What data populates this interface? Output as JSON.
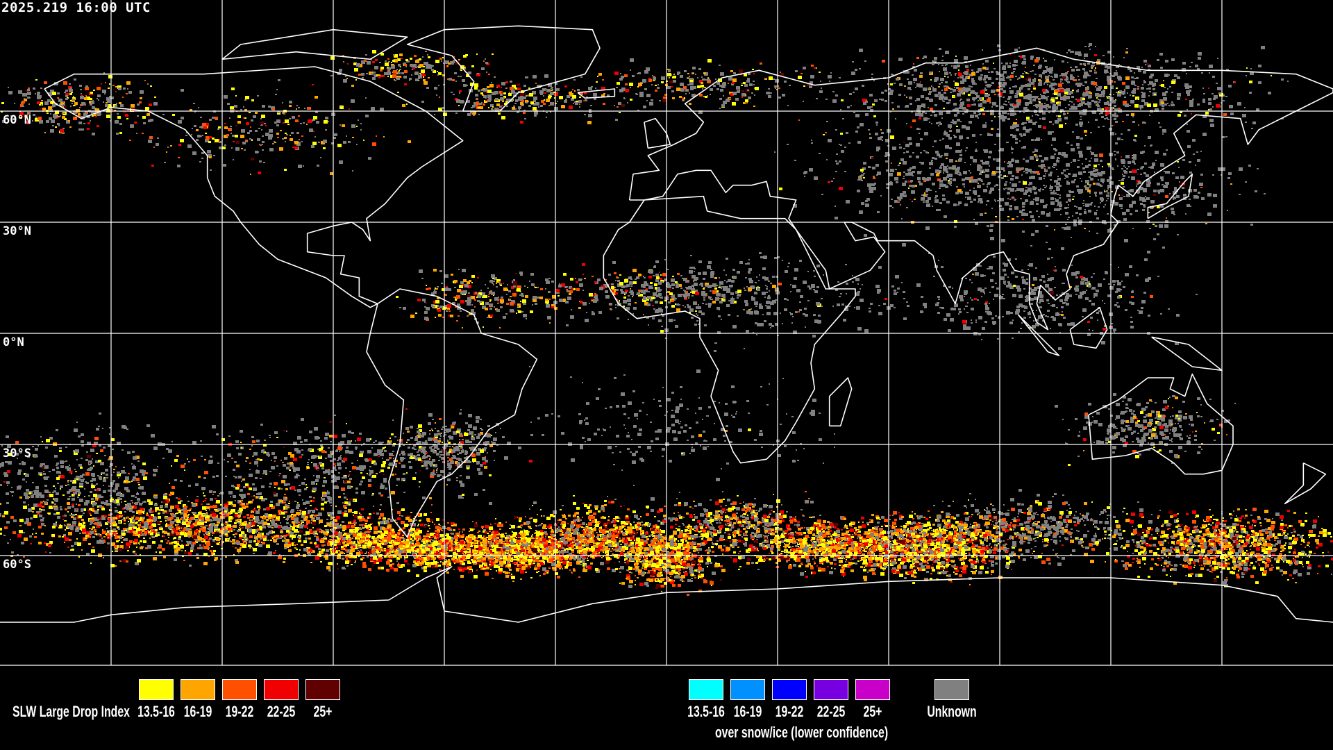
{
  "header": {
    "timestamp": "2025.219 16:00 UTC"
  },
  "map": {
    "projection": "equirectangular",
    "grid_lines": true,
    "lat_labels": [
      "60°N",
      "30°N",
      "0°N",
      "30°S",
      "60°S"
    ],
    "coastline_color": "#ffffff",
    "background_color": "#000000"
  },
  "legend": {
    "title": "SLW Large Drop Index",
    "main_classes": [
      {
        "label": "13.5-16",
        "color": "#ffff00"
      },
      {
        "label": "16-19",
        "color": "#ffa500"
      },
      {
        "label": "19-22",
        "color": "#ff5000"
      },
      {
        "label": "22-25",
        "color": "#f00000"
      },
      {
        "label": "25+",
        "color": "#600000"
      }
    ],
    "snow_ice_classes": [
      {
        "label": "13.5-16",
        "color": "#00ffff"
      },
      {
        "label": "16-19",
        "color": "#0090ff"
      },
      {
        "label": "19-22",
        "color": "#0000ff"
      },
      {
        "label": "22-25",
        "color": "#7800e0"
      },
      {
        "label": "25+",
        "color": "#c800c8"
      }
    ],
    "snow_ice_note": "over snow/ice (lower confidence)",
    "unknown": {
      "label": "Unknown",
      "color": "#808080"
    }
  }
}
